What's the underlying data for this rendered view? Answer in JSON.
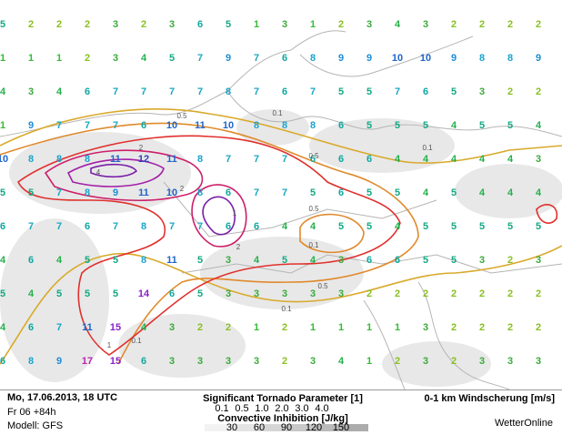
{
  "grid": {
    "rows": [
      [
        5,
        2,
        2,
        2,
        3,
        2,
        3,
        6,
        5,
        1,
        3,
        1,
        2,
        3,
        4,
        3,
        2,
        2,
        2,
        2
      ],
      [
        1,
        1,
        1,
        2,
        3,
        4,
        5,
        7,
        9,
        7,
        6,
        8,
        9,
        9,
        10,
        10,
        9,
        8,
        8,
        9
      ],
      [
        4,
        3,
        4,
        6,
        7,
        7,
        7,
        7,
        8,
        7,
        6,
        7,
        5,
        5,
        7,
        6,
        5,
        3,
        2,
        2
      ],
      [
        1,
        9,
        7,
        7,
        7,
        6,
        10,
        11,
        10,
        8,
        8,
        8,
        6,
        5,
        5,
        5,
        4,
        5,
        5,
        4
      ],
      [
        10,
        8,
        8,
        8,
        11,
        12,
        11,
        8,
        7,
        7,
        7,
        6,
        6,
        6,
        4,
        4,
        4,
        4,
        4,
        3
      ],
      [
        5,
        5,
        7,
        8,
        9,
        11,
        10,
        8,
        6,
        7,
        7,
        5,
        6,
        5,
        5,
        4,
        5,
        4,
        4,
        4
      ],
      [
        6,
        7,
        7,
        6,
        7,
        8,
        7,
        7,
        6,
        6,
        4,
        4,
        5,
        5,
        4,
        5,
        5,
        5,
        5,
        5
      ],
      [
        4,
        6,
        4,
        5,
        5,
        8,
        11,
        5,
        3,
        4,
        5,
        4,
        3,
        6,
        6,
        5,
        5,
        3,
        2,
        3
      ],
      [
        5,
        4,
        5,
        5,
        5,
        14,
        6,
        5,
        3,
        3,
        3,
        3,
        3,
        2,
        2,
        2,
        2,
        2,
        2,
        2
      ],
      [
        4,
        6,
        7,
        11,
        15,
        4,
        3,
        2,
        2,
        1,
        2,
        1,
        1,
        1,
        1,
        3,
        2,
        2,
        2,
        2
      ],
      [
        6,
        8,
        9,
        17,
        15,
        6,
        3,
        3,
        3,
        3,
        2,
        3,
        4,
        1,
        2,
        3,
        2,
        3,
        3,
        3
      ]
    ]
  },
  "contour_labels": [
    "0.5",
    "0.1",
    "2",
    "4",
    "2",
    "1",
    "0.5",
    "0.1",
    "2",
    "0.5",
    "0.1",
    "0.5",
    "0.1",
    "1",
    "0.1"
  ],
  "footer": {
    "date": "Mo, 17.06.2013, 18 UTC",
    "run": "Fr 06 +84h",
    "model": "Modell: GFS",
    "tornado_title": "Significant Tornado Parameter [1]",
    "tornado_levels": [
      {
        "label": "0.1",
        "color": "#d9a92a"
      },
      {
        "label": "0.5",
        "color": "#e08a2c"
      },
      {
        "label": "1.0",
        "color": "#e0302c"
      },
      {
        "label": "2.0",
        "color": "#cc1f6a"
      },
      {
        "label": "3.0",
        "color": "#a31fa8"
      },
      {
        "label": "4.0",
        "color": "#7a1fa8"
      }
    ],
    "cin_title": "Convective Inhibition [J/kg]",
    "cin_levels": [
      "30",
      "60",
      "90",
      "120",
      "150"
    ],
    "shear_title": "0-1 km Windscherung [m/s]",
    "brand": "WetterOnline"
  }
}
